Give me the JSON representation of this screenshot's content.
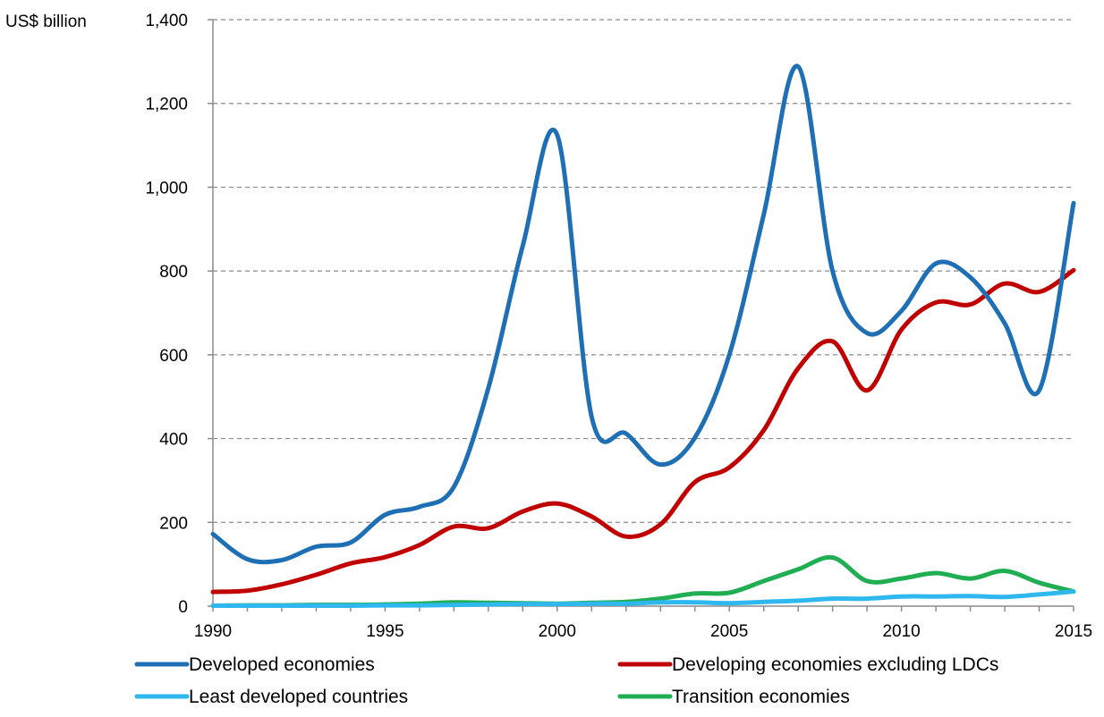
{
  "chart_data": {
    "type": "line",
    "ylabel": "US$ billion",
    "ylim": [
      0,
      1400
    ],
    "y_ticks": [
      "0",
      "200",
      "400",
      "600",
      "800",
      "1,000",
      "1,200",
      "1,400"
    ],
    "y_tick_values": [
      0,
      200,
      400,
      600,
      800,
      1000,
      1200,
      1400
    ],
    "xlim": [
      1990,
      2015
    ],
    "x_ticks": [
      "1990",
      "1995",
      "2000",
      "2005",
      "2010",
      "2015"
    ],
    "x_tick_values": [
      1990,
      1995,
      2000,
      2005,
      2010,
      2015
    ],
    "grid": "horizontal dashed",
    "legend_position": "bottom",
    "x": [
      1990,
      1991,
      1992,
      1993,
      1994,
      1995,
      1996,
      1997,
      1998,
      1999,
      2000,
      2001,
      2002,
      2003,
      2004,
      2005,
      2006,
      2007,
      2008,
      2009,
      2010,
      2011,
      2012,
      2013,
      2014,
      2015
    ],
    "series": [
      {
        "name": "Developed economies",
        "color": "#1f6fb5",
        "values": [
          172,
          112,
          110,
          142,
          152,
          218,
          237,
          285,
          520,
          860,
          1125,
          452,
          412,
          338,
          402,
          600,
          935,
          1288,
          800,
          652,
          705,
          818,
          785,
          675,
          515,
          962
        ]
      },
      {
        "name": "Developing economies excluding LDCs",
        "color": "#c00000",
        "values": [
          34,
          37,
          52,
          75,
          102,
          117,
          146,
          190,
          186,
          226,
          245,
          214,
          166,
          195,
          296,
          331,
          420,
          568,
          632,
          515,
          660,
          725,
          720,
          770,
          750,
          802
        ]
      },
      {
        "name": "Least developed countries",
        "color": "#2eb8ee",
        "values": [
          1,
          1,
          1,
          1,
          1,
          2,
          2,
          3,
          4,
          5,
          5,
          6,
          6,
          9,
          9,
          7,
          10,
          13,
          18,
          18,
          23,
          23,
          24,
          22,
          28,
          35
        ]
      },
      {
        "name": "Transition economies",
        "color": "#1fae52",
        "values": [
          1,
          2,
          2,
          3,
          3,
          4,
          6,
          9,
          8,
          7,
          6,
          8,
          10,
          18,
          30,
          32,
          60,
          88,
          116,
          60,
          66,
          79,
          66,
          84,
          56,
          35
        ]
      }
    ]
  }
}
